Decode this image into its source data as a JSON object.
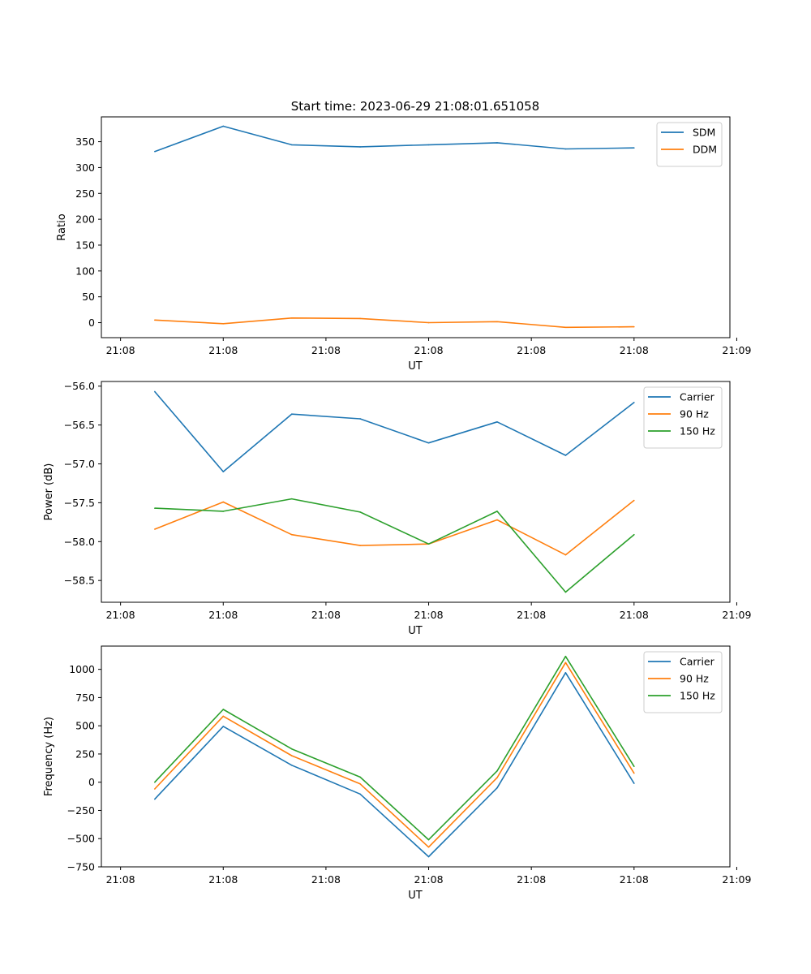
{
  "figure": {
    "title": "Start time: 2023-06-29 21:08:01.651058"
  },
  "chart_data": [
    {
      "type": "line",
      "title": "Start time: 2023-06-29 21:08:01.651058",
      "xlabel": "UT",
      "ylabel": "Ratio",
      "x_tick_labels": [
        "21:08",
        "21:08",
        "21:08",
        "21:08",
        "21:08",
        "21:08",
        "21:09"
      ],
      "y_ticks": [
        0,
        50,
        100,
        150,
        200,
        250,
        300,
        350
      ],
      "ylim": [
        -29,
        398
      ],
      "x": [
        1,
        2,
        3,
        4,
        5,
        6,
        7,
        8
      ],
      "xlim": [
        0.22,
        9.4
      ],
      "legend_position": "top-right",
      "grid": false,
      "series": [
        {
          "name": "SDM",
          "color": "#1f77b4",
          "values": [
            331,
            380,
            344,
            340,
            344,
            348,
            336,
            338
          ]
        },
        {
          "name": "DDM",
          "color": "#ff7f0e",
          "values": [
            5,
            -2,
            9,
            8,
            0,
            2,
            -9,
            -8
          ]
        }
      ]
    },
    {
      "type": "line",
      "xlabel": "UT",
      "ylabel": "Power (dB)",
      "x_tick_labels": [
        "21:08",
        "21:08",
        "21:08",
        "21:08",
        "21:08",
        "21:08",
        "21:09"
      ],
      "y_ticks": [
        -58.5,
        -58.0,
        -57.5,
        -57.0,
        -56.5,
        -56.0
      ],
      "y_tick_labels": [
        "−58.5",
        "−58.0",
        "−57.5",
        "−57.0",
        "−56.5",
        "−56.0"
      ],
      "ylim": [
        -58.78,
        -55.94
      ],
      "x": [
        1,
        2,
        3,
        4,
        5,
        6,
        7,
        8
      ],
      "xlim": [
        0.22,
        9.4
      ],
      "legend_position": "top-right",
      "grid": false,
      "series": [
        {
          "name": "Carrier",
          "color": "#1f77b4",
          "values": [
            -56.07,
            -57.1,
            -56.36,
            -56.42,
            -56.73,
            -56.46,
            -56.89,
            -56.21
          ]
        },
        {
          "name": "90 Hz",
          "color": "#ff7f0e",
          "values": [
            -57.84,
            -57.49,
            -57.91,
            -58.05,
            -58.03,
            -57.72,
            -58.17,
            -57.47
          ]
        },
        {
          "name": "150 Hz",
          "color": "#2ca02c",
          "values": [
            -57.57,
            -57.61,
            -57.45,
            -57.62,
            -58.03,
            -57.61,
            -58.65,
            -57.91
          ]
        }
      ]
    },
    {
      "type": "line",
      "xlabel": "UT",
      "ylabel": "Frequency (Hz)",
      "x_tick_labels": [
        "21:08",
        "21:08",
        "21:08",
        "21:08",
        "21:08",
        "21:08",
        "21:09"
      ],
      "y_ticks": [
        -750,
        -500,
        -250,
        0,
        250,
        500,
        750,
        1000
      ],
      "y_tick_labels": [
        "−750",
        "−500",
        "−250",
        "0",
        "250",
        "500",
        "750",
        "1000"
      ],
      "ylim": [
        -750,
        1206
      ],
      "x": [
        1,
        2,
        3,
        4,
        5,
        6,
        7,
        8
      ],
      "xlim": [
        0.22,
        9.4
      ],
      "legend_position": "top-right",
      "grid": false,
      "series": [
        {
          "name": "Carrier",
          "color": "#1f77b4",
          "values": [
            -150,
            495,
            150,
            -105,
            -660,
            -50,
            970,
            -10
          ]
        },
        {
          "name": "90 Hz",
          "color": "#ff7f0e",
          "values": [
            -60,
            585,
            235,
            -15,
            -575,
            40,
            1060,
            80
          ]
        },
        {
          "name": "150 Hz",
          "color": "#2ca02c",
          "values": [
            0,
            645,
            295,
            45,
            -510,
            100,
            1115,
            140
          ]
        }
      ]
    }
  ]
}
